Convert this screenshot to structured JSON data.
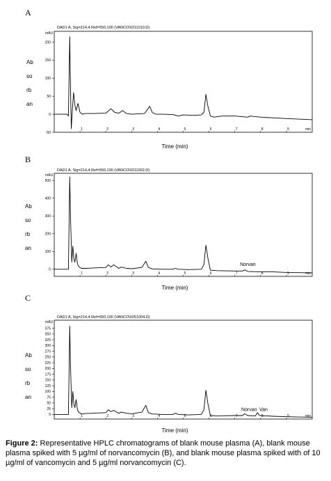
{
  "chart_data": [
    {
      "type": "line",
      "panel_label": "A",
      "header": "DAD1 A, Sig=214,4 Ref=550,100 (VANCO\\0211010.D)",
      "y_unit": "mAU",
      "ylabel_lines": [
        "Ab",
        "so",
        "rb",
        "an"
      ],
      "xlabel": "Time (min)",
      "x_unit": "min",
      "xlim": [
        0,
        10
      ],
      "ylim": [
        -50,
        230
      ],
      "y_ticks": [
        -50,
        0,
        50,
        100,
        150,
        200
      ],
      "x_ticks": [
        1,
        2,
        3,
        4,
        5,
        6,
        7,
        8,
        9
      ],
      "series": [
        {
          "x": [
            0,
            0.4,
            0.5,
            0.55,
            0.6,
            0.62,
            0.66,
            0.7,
            0.75,
            0.8,
            0.85,
            0.92,
            1.0,
            1.1,
            1.2,
            1.5,
            2.0,
            2.2,
            2.35,
            2.5,
            2.65,
            2.8,
            3.0,
            3.5,
            3.7,
            3.8,
            3.95,
            4.2,
            4.6,
            4.8,
            5.0,
            5.4,
            5.7,
            5.8,
            5.88,
            5.95,
            6.05,
            6.2,
            6.5,
            7.0,
            7.5,
            7.6,
            8.0,
            8.5,
            9.0,
            10.0
          ],
          "y": [
            0,
            0,
            0,
            -5,
            215,
            120,
            -40,
            10,
            60,
            25,
            10,
            30,
            5,
            0,
            2,
            2,
            3,
            15,
            5,
            3,
            10,
            2,
            0,
            2,
            22,
            5,
            0,
            0,
            -1,
            -5,
            -2,
            -3,
            -2,
            5,
            55,
            25,
            -5,
            -8,
            -5,
            -5,
            -8,
            -5,
            -8,
            -10,
            -12,
            -15
          ]
        }
      ],
      "annotations": []
    },
    {
      "type": "line",
      "panel_label": "B",
      "header": "DAD1 A, Sig=214,4 Ref=550,100 (VANCO\\0211002.D)",
      "y_unit": "mAU",
      "ylabel_lines": [
        "Ab",
        "so",
        "rb",
        "an"
      ],
      "xlabel": "Time (min)",
      "x_unit": "min",
      "xlim": [
        0,
        10
      ],
      "ylim": [
        -40,
        540
      ],
      "y_ticks": [
        0,
        100,
        200,
        300,
        400,
        500
      ],
      "x_ticks": [
        1,
        2,
        3,
        4,
        5,
        6,
        7,
        8,
        9
      ],
      "series": [
        {
          "x": [
            0,
            0.45,
            0.55,
            0.6,
            0.63,
            0.68,
            0.72,
            0.76,
            0.8,
            0.85,
            0.9,
            0.95,
            1.05,
            1.2,
            1.6,
            2.0,
            2.1,
            2.2,
            2.3,
            2.5,
            2.6,
            2.8,
            3.0,
            3.4,
            3.55,
            3.65,
            3.8,
            4.2,
            4.6,
            4.7,
            4.8,
            5.2,
            5.7,
            5.8,
            5.88,
            5.96,
            6.05,
            6.3,
            7.0,
            7.3,
            7.38,
            7.5,
            8.0,
            8.5,
            9.0,
            10.0
          ],
          "y": [
            0,
            0,
            0,
            520,
            300,
            40,
            130,
            60,
            40,
            90,
            30,
            15,
            5,
            5,
            8,
            10,
            25,
            12,
            25,
            5,
            12,
            5,
            3,
            10,
            45,
            10,
            2,
            0,
            0,
            5,
            0,
            -2,
            0,
            25,
            135,
            60,
            -5,
            -8,
            -10,
            -10,
            -4,
            -12,
            -15,
            -15,
            -18,
            -20
          ]
        }
      ],
      "annotations": [
        {
          "text": "Norvan",
          "x": 7.2,
          "y": 18
        }
      ]
    },
    {
      "type": "line",
      "panel_label": "C",
      "header": "DAD1 A, Sig=214,4 Ref=550,100 (VANCO\\0251004.D)",
      "y_unit": "mAU",
      "ylabel_lines": [
        "Ab",
        "so",
        "rb",
        "an"
      ],
      "xlabel": "Time (min)",
      "x_unit": "min",
      "xlim": [
        0,
        10
      ],
      "ylim": [
        -20,
        410
      ],
      "y_ticks": [
        0,
        25,
        50,
        75,
        100,
        125,
        150,
        175,
        200,
        225,
        250,
        275,
        300,
        325,
        350,
        375
      ],
      "x_ticks": [
        1,
        2,
        3,
        4,
        5,
        6,
        7,
        8,
        9
      ],
      "series": [
        {
          "x": [
            0,
            0.45,
            0.55,
            0.6,
            0.63,
            0.68,
            0.72,
            0.76,
            0.8,
            0.85,
            0.9,
            0.95,
            1.05,
            1.2,
            1.6,
            2.0,
            2.1,
            2.2,
            2.3,
            2.5,
            2.6,
            2.8,
            3.0,
            3.4,
            3.55,
            3.65,
            3.8,
            4.2,
            4.6,
            4.7,
            4.8,
            5.2,
            5.7,
            5.8,
            5.88,
            5.96,
            6.05,
            6.3,
            7.0,
            7.3,
            7.38,
            7.5,
            7.8,
            7.88,
            7.95,
            8.0,
            8.5,
            9.0,
            10.0
          ],
          "y": [
            0,
            0,
            0,
            385,
            210,
            30,
            100,
            45,
            30,
            65,
            20,
            10,
            2,
            4,
            6,
            8,
            20,
            12,
            18,
            5,
            10,
            5,
            3,
            10,
            40,
            8,
            2,
            0,
            0,
            5,
            0,
            -2,
            0,
            20,
            105,
            45,
            -5,
            -6,
            -5,
            -5,
            3,
            -5,
            -6,
            8,
            -4,
            -5,
            -8,
            -10,
            -12
          ]
        }
      ],
      "annotations": [
        {
          "text": "Norvan",
          "x": 7.25,
          "y": 15
        },
        {
          "text": "Van",
          "x": 7.95,
          "y": 15
        }
      ]
    }
  ],
  "caption": {
    "label": "Figure 2:",
    "text": " Representative HPLC chromatograms of blank mouse plasma (A), blank mouse plasma spiked with 5 µg/ml of norvancomycin (B), and blank mouse plasma spiked with of 10 µg/ml of vancomycin and 5 µg/ml norvancomycin (C)."
  },
  "colors": {
    "trace": "#000000",
    "frame": "#000000",
    "background": "#ffffff"
  }
}
